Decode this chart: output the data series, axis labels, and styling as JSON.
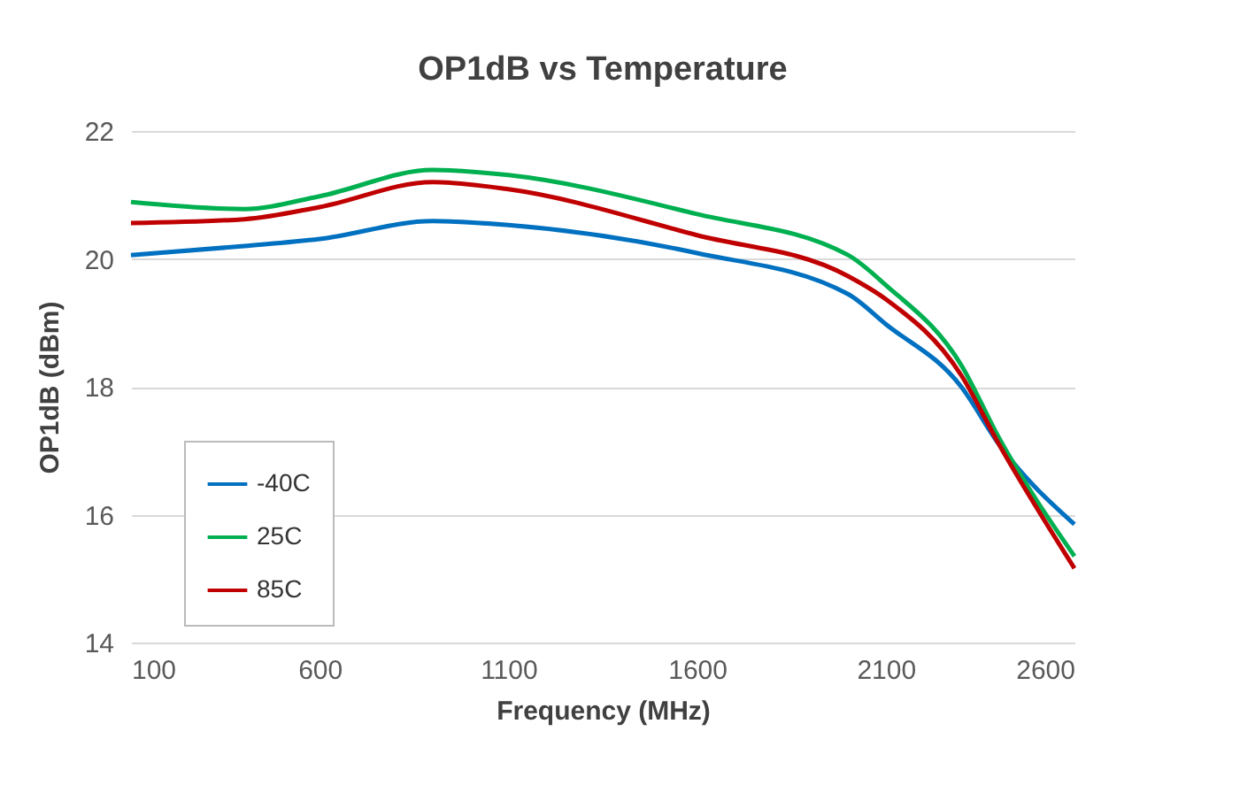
{
  "chart_data": {
    "type": "line",
    "title": "OP1dB vs Temperature",
    "xlabel": "Frequency (MHz)",
    "ylabel": "OP1dB (dBm)",
    "x": [
      100,
      400,
      600,
      900,
      1100,
      1600,
      2000,
      2100,
      2300,
      2400,
      2600
    ],
    "series": [
      {
        "name": "-40C",
        "color": "#0070c0",
        "values": [
          20.06,
          20.2,
          20.31,
          20.59,
          20.53,
          20.09,
          19.45,
          18.98,
          18.0,
          17.1,
          15.85
        ]
      },
      {
        "name": "25C",
        "color": "#00b050",
        "values": [
          20.89,
          20.78,
          20.98,
          21.39,
          21.31,
          20.7,
          20.06,
          19.59,
          18.34,
          17.2,
          15.35
        ]
      },
      {
        "name": "85C",
        "color": "#c00000",
        "values": [
          20.56,
          20.62,
          20.81,
          21.2,
          21.09,
          20.37,
          19.73,
          19.37,
          18.18,
          17.1,
          15.16
        ]
      }
    ],
    "xlim": [
      100,
      2600
    ],
    "xticks": [
      100,
      600,
      1100,
      1600,
      2100,
      2600
    ],
    "ylim": [
      14,
      22
    ],
    "yticks": [
      14,
      16,
      18,
      20,
      22
    ],
    "grid": "y",
    "legend": "bottom left",
    "marker": "none",
    "line_style": "solid"
  }
}
